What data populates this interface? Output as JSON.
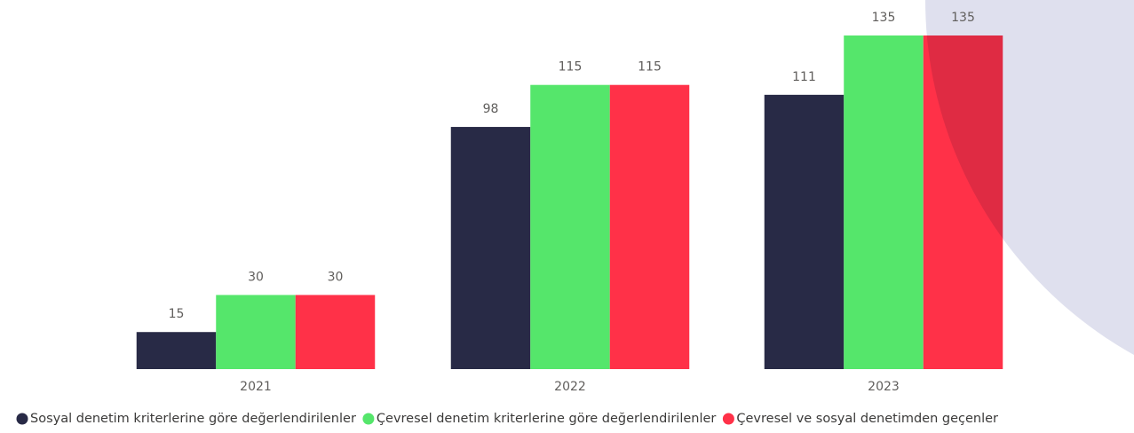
{
  "chart_data": {
    "type": "bar",
    "categories": [
      "2021",
      "2022",
      "2023"
    ],
    "series": [
      {
        "name": "Sosyal denetim kriterlerine göre değerlendirilenler",
        "color": "#282a46",
        "values": [
          15,
          98,
          111
        ]
      },
      {
        "name": "Çevresel denetim kriterlerine göre değerlendirilenler",
        "color": "#55e66b",
        "values": [
          30,
          115,
          135
        ]
      },
      {
        "name": "Çevresel ve sosyal denetimden geçenler",
        "color": "#ff3148",
        "values": [
          30,
          115,
          135
        ]
      }
    ],
    "ylim": [
      0,
      135
    ]
  }
}
